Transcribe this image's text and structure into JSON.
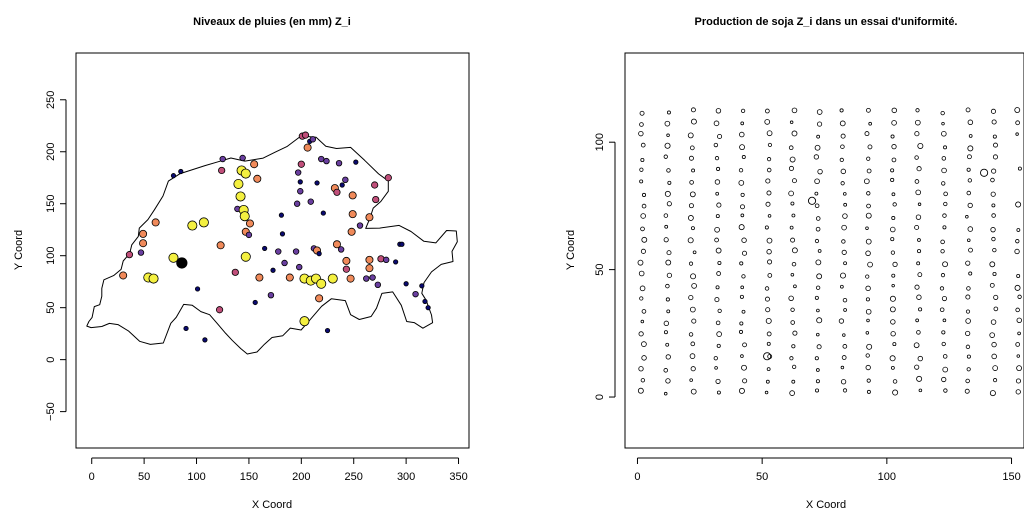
{
  "chart_data": [
    {
      "type": "scatter",
      "title": "Niveaux de pluies (en mm) Z_i",
      "xlabel": "X Coord",
      "ylabel": "Y Coord",
      "xlim": [
        -15,
        360
      ],
      "ylim": [
        -85,
        295
      ],
      "xticks": [
        "0",
        "50",
        "100",
        "150",
        "200",
        "250",
        "300",
        "350"
      ],
      "yticks": [
        "−50",
        "0",
        "50",
        "100",
        "150",
        "200",
        "250"
      ],
      "xtick_values": [
        0,
        50,
        100,
        150,
        200,
        250,
        300,
        350
      ],
      "ytick_values": [
        -50,
        0,
        50,
        100,
        150,
        200,
        250
      ],
      "colors": {
        "low": "#0a0a70",
        "mid1": "#6a3fa0",
        "mid2": "#c04f7a",
        "mid3": "#f08a5a",
        "high": "#f4f040"
      },
      "points": [
        [
          30,
          81,
          3
        ],
        [
          36,
          101,
          2
        ],
        [
          47,
          103,
          1
        ],
        [
          49,
          121,
          3
        ],
        [
          49,
          112,
          3
        ],
        [
          54,
          79,
          4
        ],
        [
          59,
          78,
          4
        ],
        [
          60,
          76,
          5
        ],
        [
          61,
          132,
          3
        ],
        [
          78,
          98,
          4
        ],
        [
          78,
          177,
          0
        ],
        [
          85,
          181,
          0
        ],
        [
          86,
          93,
          5
        ],
        [
          90,
          30,
          0
        ],
        [
          96,
          129,
          4
        ],
        [
          101,
          68,
          0
        ],
        [
          107,
          132,
          4
        ],
        [
          108,
          19,
          0
        ],
        [
          122,
          48,
          2
        ],
        [
          123,
          110,
          3
        ],
        [
          124,
          182,
          2
        ],
        [
          125,
          193,
          1
        ],
        [
          137,
          84,
          2
        ],
        [
          139,
          145,
          1
        ],
        [
          140,
          169,
          4
        ],
        [
          142,
          157,
          4
        ],
        [
          143,
          182,
          4
        ],
        [
          144,
          194,
          1
        ],
        [
          145,
          144,
          4
        ],
        [
          146,
          138,
          4
        ],
        [
          147,
          123,
          3
        ],
        [
          147,
          179,
          4
        ],
        [
          147,
          99,
          4
        ],
        [
          150,
          120,
          1
        ],
        [
          151,
          131,
          3
        ],
        [
          155,
          188,
          3
        ],
        [
          156,
          55,
          0
        ],
        [
          158,
          174,
          3
        ],
        [
          160,
          79,
          3
        ],
        [
          165,
          107,
          0
        ],
        [
          171,
          62,
          1
        ],
        [
          173,
          86,
          0
        ],
        [
          178,
          104,
          1
        ],
        [
          181,
          139,
          0
        ],
        [
          182,
          121,
          0
        ],
        [
          184,
          93,
          1
        ],
        [
          189,
          79,
          3
        ],
        [
          195,
          104,
          1
        ],
        [
          196,
          150,
          1
        ],
        [
          197,
          180,
          1
        ],
        [
          198,
          89,
          1
        ],
        [
          199,
          171,
          0
        ],
        [
          199,
          162,
          1
        ],
        [
          200,
          188,
          2
        ],
        [
          201,
          215,
          2
        ],
        [
          203,
          78,
          4
        ],
        [
          203,
          37,
          4
        ],
        [
          204,
          216,
          2
        ],
        [
          206,
          204,
          3
        ],
        [
          208,
          210,
          0
        ],
        [
          209,
          152,
          1
        ],
        [
          209,
          76,
          4
        ],
        [
          211,
          212,
          1
        ],
        [
          212,
          107,
          1
        ],
        [
          215,
          105,
          3
        ],
        [
          214,
          78,
          4
        ],
        [
          215,
          170,
          0
        ],
        [
          217,
          102,
          0
        ],
        [
          217,
          59,
          3
        ],
        [
          219,
          73,
          4
        ],
        [
          219,
          193,
          1
        ],
        [
          221,
          141,
          0
        ],
        [
          224,
          191,
          1
        ],
        [
          225,
          28,
          0
        ],
        [
          230,
          78,
          4
        ],
        [
          232,
          165,
          3
        ],
        [
          234,
          111,
          3
        ],
        [
          234,
          161,
          2
        ],
        [
          236,
          189,
          1
        ],
        [
          238,
          106,
          1
        ],
        [
          239,
          168,
          0
        ],
        [
          242,
          173,
          1
        ],
        [
          243,
          95,
          3
        ],
        [
          243,
          87,
          2
        ],
        [
          247,
          78,
          3
        ],
        [
          248,
          123,
          3
        ],
        [
          249,
          140,
          3
        ],
        [
          249,
          158,
          3
        ],
        [
          252,
          190,
          0
        ],
        [
          256,
          129,
          1
        ],
        [
          262,
          78,
          1
        ],
        [
          265,
          137,
          3
        ],
        [
          265,
          96,
          3
        ],
        [
          265,
          88,
          3
        ],
        [
          268,
          79,
          1
        ],
        [
          270,
          168,
          2
        ],
        [
          271,
          154,
          2
        ],
        [
          273,
          72,
          1
        ],
        [
          276,
          97,
          2
        ],
        [
          281,
          96,
          1
        ],
        [
          283,
          175,
          2
        ],
        [
          290,
          94,
          0
        ],
        [
          294,
          111,
          0
        ],
        [
          296,
          111,
          0
        ],
        [
          300,
          73,
          0
        ],
        [
          309,
          63,
          1
        ],
        [
          315,
          71,
          0
        ],
        [
          318,
          56,
          0
        ],
        [
          321,
          50,
          0
        ]
      ]
    },
    {
      "type": "scatter",
      "title": "Production de soja Z_i dans un essai d'uniformité.",
      "xlabel": "X Coord",
      "ylabel": "Y Coord",
      "xlim": [
        -5,
        155
      ],
      "ylim": [
        -20,
        135
      ],
      "xticks": [
        "0",
        "50",
        "100",
        "150"
      ],
      "yticks": [
        "0",
        "50",
        "100"
      ],
      "xtick_values": [
        0,
        50,
        100,
        150
      ],
      "ytick_values": [
        0,
        50,
        100
      ],
      "grid": {
        "x0": 2,
        "x1": 153,
        "cols": 16,
        "y0": 2,
        "y1": 112,
        "rows": 25
      },
      "large_points": [
        [
          70,
          77
        ],
        [
          52,
          16
        ],
        [
          139,
          88
        ]
      ],
      "point_color": "#000000"
    }
  ]
}
